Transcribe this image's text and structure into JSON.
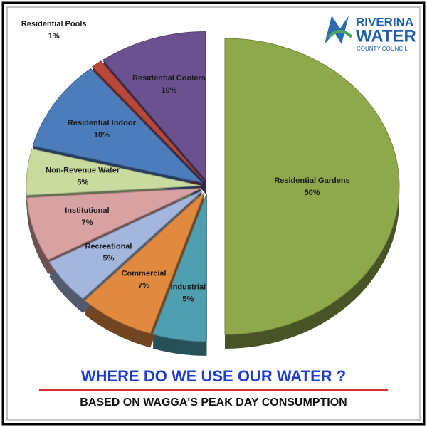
{
  "chart_data": {
    "type": "pie",
    "title": "WHERE DO WE USE OUR WATER ?",
    "subtitle": "BASED ON WAGGA'S PEAK DAY CONSUMPTION",
    "categories": [
      "Residential Gardens",
      "Industrial",
      "Commercial",
      "Recreational",
      "Institutional",
      "Non-Revenue Water",
      "Residential Indoor",
      "Residential Pools",
      "Residential Coolers"
    ],
    "values": [
      50,
      5,
      7,
      5,
      7,
      5,
      10,
      1,
      10
    ],
    "value_labels": [
      "50%",
      "5%",
      "7%",
      "5%",
      "7%",
      "5%",
      "10%",
      "1%",
      "10%"
    ],
    "colors": [
      "#8fa84c",
      "#4f9fb0",
      "#e0893f",
      "#a3b6dc",
      "#d9a2a2",
      "#cadba0",
      "#4d7cba",
      "#b8483a",
      "#6c5190"
    ]
  },
  "logo": {
    "line1": "RIVERINA",
    "line2": "WATER",
    "line3": "COUNTY COUNCIL"
  }
}
